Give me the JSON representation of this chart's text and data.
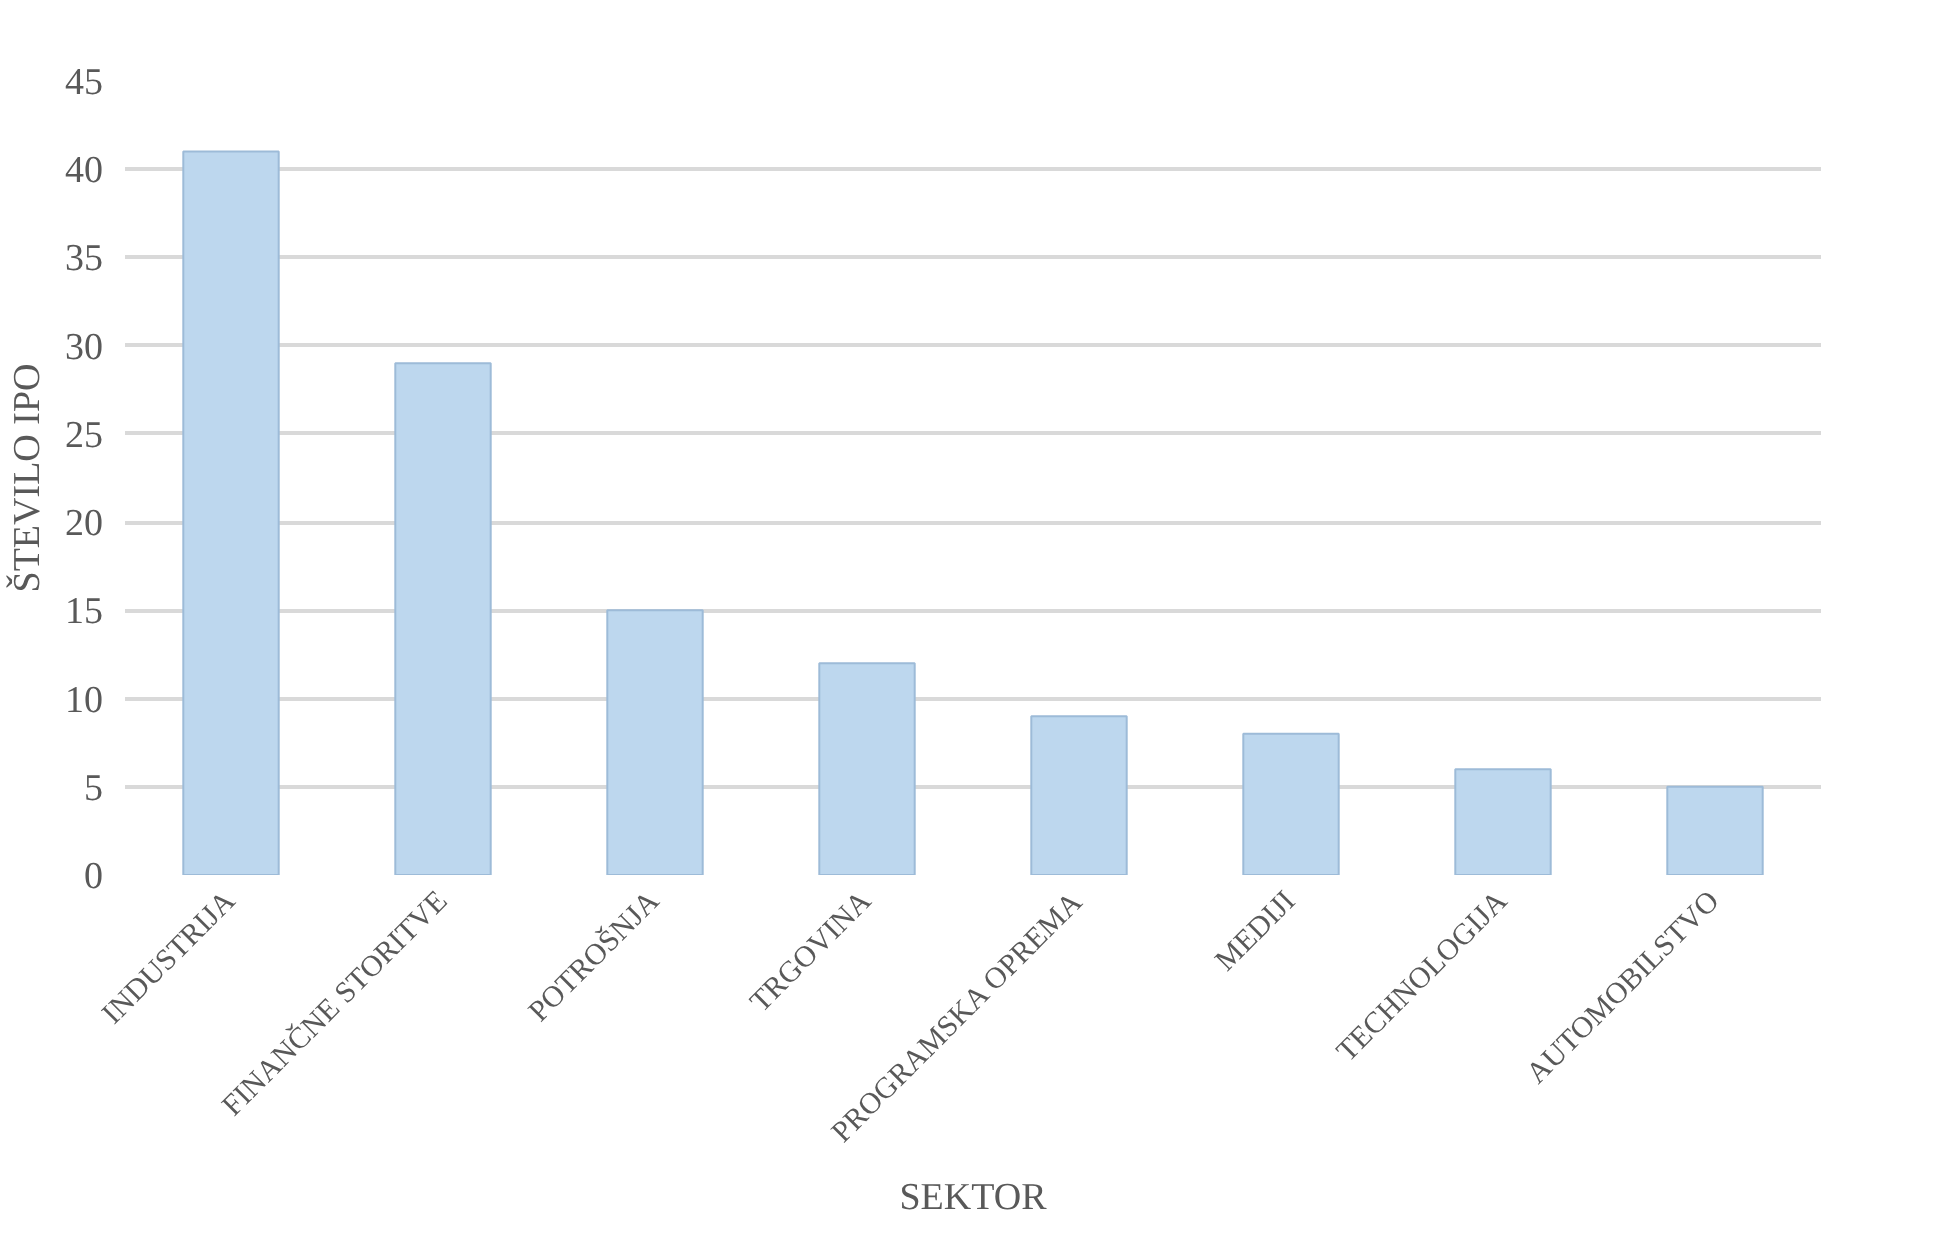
{
  "chart_data": {
    "type": "bar",
    "xlabel": "SEKTOR",
    "ylabel": "ŠTEVILO IPO",
    "categories": [
      "INDUSTRIJA",
      "FINANČNE STORITVE",
      "POTROŠNJA",
      "TRGOVINA",
      "PROGRAMSKA OPREMA",
      "MEDIJI",
      "TECHNOLOGIJA",
      "AUTOMOBILSTVO"
    ],
    "values": [
      41,
      29,
      15,
      12,
      9,
      8,
      6,
      5
    ],
    "color": "#bdd7ee",
    "ylim": [
      0,
      45
    ],
    "yticks": [
      0,
      5,
      10,
      15,
      20,
      25,
      30,
      35,
      40,
      45
    ],
    "grid": "y"
  }
}
